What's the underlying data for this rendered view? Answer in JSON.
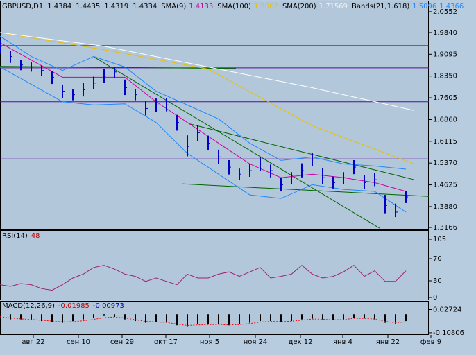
{
  "chart_data": [
    {
      "type": "ohlc",
      "title": "GBPUSD,D1",
      "header_values": [
        1.4384,
        1.4435,
        1.4319,
        1.4334
      ],
      "color": "#0000c8",
      "x": [
        0,
        3,
        6,
        9,
        12,
        15,
        18,
        21,
        24,
        27,
        30,
        33,
        36,
        39,
        42,
        45,
        48,
        51,
        54,
        57,
        60,
        63,
        66,
        69,
        72,
        75,
        78,
        81,
        84,
        87,
        90,
        93,
        96,
        99,
        102,
        105,
        108,
        111,
        114,
        117
      ],
      "high": [
        1.962,
        1.921,
        1.889,
        1.884,
        1.871,
        1.852,
        1.806,
        1.789,
        1.812,
        1.833,
        1.858,
        1.866,
        1.823,
        1.79,
        1.751,
        1.758,
        1.76,
        1.702,
        1.632,
        1.668,
        1.631,
        1.583,
        1.547,
        1.518,
        1.535,
        1.557,
        1.532,
        1.488,
        1.506,
        1.536,
        1.572,
        1.52,
        1.491,
        1.506,
        1.547,
        1.496,
        1.502,
        1.428,
        1.398,
        1.44
      ],
      "low": [
        1.915,
        1.88,
        1.855,
        1.85,
        1.836,
        1.808,
        1.76,
        1.752,
        1.765,
        1.79,
        1.812,
        1.828,
        1.77,
        1.752,
        1.7,
        1.712,
        1.714,
        1.648,
        1.56,
        1.612,
        1.581,
        1.534,
        1.498,
        1.478,
        1.49,
        1.51,
        1.488,
        1.44,
        1.465,
        1.488,
        1.528,
        1.465,
        1.45,
        1.466,
        1.499,
        1.448,
        1.458,
        1.365,
        1.352,
        1.4
      ],
      "close": [
        1.937,
        1.902,
        1.873,
        1.866,
        1.854,
        1.831,
        1.783,
        1.771,
        1.788,
        1.811,
        1.835,
        1.849,
        1.795,
        1.771,
        1.724,
        1.736,
        1.736,
        1.676,
        1.594,
        1.641,
        1.605,
        1.558,
        1.523,
        1.499,
        1.511,
        1.534,
        1.511,
        1.463,
        1.487,
        1.511,
        1.551,
        1.487,
        1.47,
        1.487,
        1.523,
        1.47,
        1.48,
        1.392,
        1.369,
        1.421
      ],
      "series": [
        {
          "name": "SMA(9)",
          "color": "#d0009c",
          "last_value": 1.4133,
          "x": [
            0,
            9,
            18,
            27,
            36,
            45,
            54,
            63,
            72,
            81,
            90,
            99,
            108,
            117
          ],
          "values": [
            1.949,
            1.89,
            1.831,
            1.831,
            1.831,
            1.747,
            1.676,
            1.605,
            1.534,
            1.487,
            1.499,
            1.487,
            1.47,
            1.44
          ]
        },
        {
          "name": "SMA(100)",
          "color": "#e8c000",
          "last_value": 1.5062,
          "x": [
            0,
            30,
            60,
            90,
            119.4
          ],
          "values": [
            1.984,
            1.925,
            1.859,
            1.665,
            1.534
          ]
        },
        {
          "name": "SMA(200)",
          "color": "#ffffff",
          "last_value": 1.71569,
          "x": [
            0,
            30,
            60,
            90,
            119.4
          ],
          "values": [
            1.984,
            1.937,
            1.866,
            1.795,
            1.717
          ]
        }
      ],
      "bands": {
        "name": "Bands(21,1.618)",
        "color": "#1e88ff",
        "last_values": [
          1.5096,
          1.4366
        ],
        "x": [
          0,
          9,
          18,
          27,
          36,
          45,
          54,
          63,
          72,
          81,
          90,
          99,
          108,
          117
        ],
        "upper": [
          1.972,
          1.902,
          1.854,
          1.902,
          1.866,
          1.783,
          1.736,
          1.688,
          1.605,
          1.546,
          1.558,
          1.534,
          1.527,
          1.516
        ],
        "lower": [
          1.866,
          1.807,
          1.747,
          1.736,
          1.74,
          1.676,
          1.57,
          1.499,
          1.428,
          1.416,
          1.463,
          1.447,
          1.44,
          1.369
        ]
      },
      "hlines": {
        "color": "#5a0aa0",
        "values": [
          1.939,
          1.863,
          1.747,
          1.551,
          1.465
        ]
      },
      "trendlines": {
        "color": "#006400",
        "lines": [
          {
            "x": [
              27,
              109.4
            ],
            "y": [
              1.901,
              1.314
            ]
          },
          {
            "x": [
              54.4,
              119.4
            ],
            "y": [
              1.672,
              1.48
            ]
          },
          {
            "x": [
              52.4,
              123.6
            ],
            "y": [
              1.466,
              1.423
            ]
          },
          {
            "x": [
              0,
              68
            ],
            "y": [
              1.868,
              1.861
            ]
          }
        ]
      },
      "xlim": [
        0,
        123.6
      ],
      "xticks": [
        {
          "value": 9.6,
          "label": "авг 22"
        },
        {
          "value": 22.6,
          "label": "сен 10"
        },
        {
          "value": 35.2,
          "label": "сен 29"
        },
        {
          "value": 47.8,
          "label": "окт 17"
        },
        {
          "value": 60.4,
          "label": "ноя 5"
        },
        {
          "value": 73.6,
          "label": "ноя 24"
        },
        {
          "value": 86.6,
          "label": "дек 12"
        },
        {
          "value": 98.8,
          "label": "янв 4"
        },
        {
          "value": 111.8,
          "label": "янв 22"
        },
        {
          "value": 124.2,
          "label": "фев 9"
        }
      ],
      "ylim": [
        1.3095,
        2.0907
      ],
      "yticks": [
        2.0552,
        {
          "value": 1.984,
          "label": "1.9840"
        },
        1.9095,
        {
          "value": 1.835,
          "label": "1.8350"
        },
        1.7605,
        {
          "value": 1.686,
          "label": "1.6860"
        },
        1.6115,
        {
          "value": 1.537,
          "label": "1.5370"
        },
        1.4625,
        {
          "value": 1.388,
          "label": "1.3880"
        },
        1.3166
      ]
    },
    {
      "type": "line",
      "title": "RSI(14)",
      "last_value": 48,
      "color": "#a0206e",
      "x": [
        0,
        3,
        6,
        9,
        12,
        15,
        18,
        21,
        24,
        27,
        30,
        33,
        36,
        39,
        42,
        45,
        48,
        51,
        54,
        57,
        60,
        63,
        66,
        69,
        72,
        75,
        78,
        81,
        84,
        87,
        90,
        93,
        96,
        99,
        102,
        105,
        108,
        111,
        114,
        117
      ],
      "values": [
        23,
        20,
        25,
        23,
        16,
        13,
        23,
        35,
        42,
        54,
        58,
        51,
        42,
        38,
        29,
        35,
        29,
        23,
        42,
        35,
        35,
        42,
        46,
        38,
        46,
        54,
        35,
        38,
        42,
        58,
        42,
        35,
        38,
        46,
        58,
        38,
        48,
        29,
        29,
        48
      ],
      "xlim": [
        0,
        123.6
      ],
      "ylim": [
        -5,
        120
      ],
      "yticks": [
        105,
        70,
        30,
        0
      ]
    },
    {
      "type": "macd",
      "title": "MACD(12,26,9)",
      "last_values": [
        -0.01985,
        -0.00973
      ],
      "color": "#000000",
      "signal_color": "#ff0000",
      "x": [
        0,
        3,
        6,
        9,
        12,
        15,
        18,
        21,
        24,
        27,
        30,
        33,
        36,
        39,
        42,
        45,
        48,
        51,
        54,
        57,
        60,
        63,
        66,
        69,
        72,
        75,
        78,
        81,
        84,
        87,
        90,
        93,
        96,
        99,
        102,
        105,
        108,
        111,
        114,
        117
      ],
      "values": [
        -0.02,
        -0.03,
        -0.03,
        -0.035,
        -0.04,
        -0.045,
        -0.05,
        -0.04,
        -0.03,
        -0.02,
        -0.01,
        -0.015,
        -0.03,
        -0.04,
        -0.05,
        -0.045,
        -0.05,
        -0.065,
        -0.07,
        -0.06,
        -0.06,
        -0.06,
        -0.065,
        -0.06,
        -0.05,
        -0.04,
        -0.04,
        -0.045,
        -0.04,
        -0.03,
        -0.025,
        -0.03,
        -0.035,
        -0.03,
        -0.02,
        -0.025,
        -0.03,
        -0.05,
        -0.055,
        -0.04
      ],
      "signal": [
        -0.015,
        -0.022,
        -0.027,
        -0.031,
        -0.035,
        -0.04,
        -0.045,
        -0.044,
        -0.038,
        -0.03,
        -0.02,
        -0.016,
        -0.022,
        -0.032,
        -0.042,
        -0.045,
        -0.048,
        -0.058,
        -0.066,
        -0.063,
        -0.061,
        -0.06,
        -0.063,
        -0.061,
        -0.055,
        -0.046,
        -0.042,
        -0.044,
        -0.041,
        -0.034,
        -0.028,
        -0.029,
        -0.033,
        -0.031,
        -0.024,
        -0.024,
        -0.028,
        -0.042,
        -0.05,
        -0.044
      ],
      "xlim": [
        0,
        123.6
      ],
      "ylim": [
        -0.1207,
        0.0738
      ],
      "yticks": [
        0.02724,
        -0.10806
      ]
    }
  ]
}
